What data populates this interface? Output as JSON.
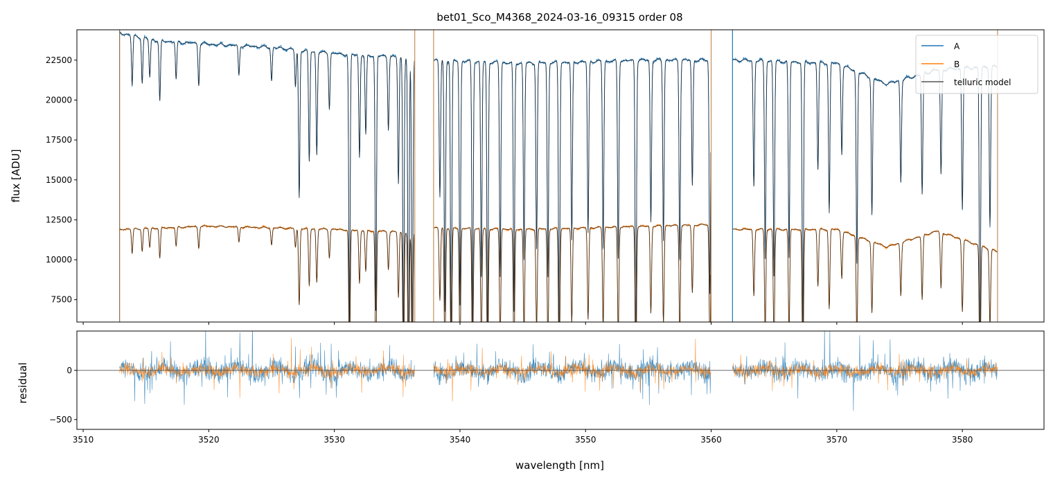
{
  "chart_data": [
    {
      "type": "line",
      "panel": "main",
      "title": "bet01_Sco_M4368_2024-03-16_09315  order 08",
      "xlabel": "",
      "ylabel": "flux [ADU]",
      "xlim": [
        3509.5,
        3586.5
      ],
      "ylim": [
        6100,
        24400
      ],
      "x_ticks": [
        3510,
        3520,
        3530,
        3540,
        3550,
        3560,
        3570,
        3580
      ],
      "y_ticks": [
        7500,
        10000,
        12500,
        15000,
        17500,
        20000,
        22500
      ],
      "y_tick_labels": [
        "7500",
        "10000",
        "12500",
        "15000",
        "17500",
        "20000",
        "22500"
      ],
      "legend": {
        "position": "top-right",
        "entries": [
          {
            "label": "A",
            "color": "#1f77b4"
          },
          {
            "label": "B",
            "color": "#ff7f0e"
          },
          {
            "label": "telluric model",
            "color": "#555555"
          }
        ]
      },
      "segments": [
        [
          3512.9,
          3536.4
        ],
        [
          3537.9,
          3560.0
        ],
        [
          3561.7,
          3582.8
        ]
      ],
      "series": [
        {
          "name": "A",
          "color": "#1f77b4",
          "continuum": [
            [
              3512.9,
              24200
            ],
            [
              3516,
              23700
            ],
            [
              3520,
              23500
            ],
            [
              3525,
              23300
            ],
            [
              3530,
              22900
            ],
            [
              3535,
              22700
            ],
            [
              3538,
              22500
            ],
            [
              3545,
              22300
            ],
            [
              3550,
              22400
            ],
            [
              3555,
              22500
            ],
            [
              3560,
              22500
            ],
            [
              3562,
              22500
            ],
            [
              3566,
              22400
            ],
            [
              3570,
              22300
            ],
            [
              3574,
              21000
            ],
            [
              3578,
              21900
            ],
            [
              3582.8,
              22100
            ]
          ]
        },
        {
          "name": "B",
          "color": "#ff7f0e",
          "continuum": [
            [
              3512.9,
              11900
            ],
            [
              3520,
              12100
            ],
            [
              3530,
              11900
            ],
            [
              3536.4,
              11700
            ],
            [
              3537.9,
              12000
            ],
            [
              3545,
              11900
            ],
            [
              3550,
              12000
            ],
            [
              3555,
              12100
            ],
            [
              3560,
              12200
            ],
            [
              3561.7,
              11900
            ],
            [
              3566,
              11900
            ],
            [
              3570,
              11900
            ],
            [
              3574,
              10800
            ],
            [
              3578,
              11800
            ],
            [
              3582.8,
              10500
            ]
          ]
        }
      ],
      "absorption_lines": [
        {
          "x": 3513.9,
          "depth": 0.13
        },
        {
          "x": 3514.7,
          "depth": 0.12
        },
        {
          "x": 3515.3,
          "depth": 0.1
        },
        {
          "x": 3516.1,
          "depth": 0.16
        },
        {
          "x": 3517.4,
          "depth": 0.1
        },
        {
          "x": 3519.2,
          "depth": 0.11
        },
        {
          "x": 3522.4,
          "depth": 0.08
        },
        {
          "x": 3525.0,
          "depth": 0.09
        },
        {
          "x": 3526.9,
          "depth": 0.1
        },
        {
          "x": 3527.2,
          "depth": 0.4
        },
        {
          "x": 3528.0,
          "depth": 0.3
        },
        {
          "x": 3528.6,
          "depth": 0.28
        },
        {
          "x": 3529.6,
          "depth": 0.15
        },
        {
          "x": 3531.2,
          "depth": 0.75
        },
        {
          "x": 3532.0,
          "depth": 0.28
        },
        {
          "x": 3532.5,
          "depth": 0.22
        },
        {
          "x": 3533.3,
          "depth": 0.7
        },
        {
          "x": 3534.3,
          "depth": 0.2
        },
        {
          "x": 3535.1,
          "depth": 0.35
        },
        {
          "x": 3535.5,
          "depth": 0.8
        },
        {
          "x": 3535.9,
          "depth": 0.9
        },
        {
          "x": 3536.2,
          "depth": 0.85
        },
        {
          "x": 3538.4,
          "depth": 0.38
        },
        {
          "x": 3538.8,
          "depth": 0.7
        },
        {
          "x": 3539.3,
          "depth": 0.8
        },
        {
          "x": 3540.0,
          "depth": 0.68
        },
        {
          "x": 3541.0,
          "depth": 0.75
        },
        {
          "x": 3541.7,
          "depth": 0.6
        },
        {
          "x": 3542.2,
          "depth": 0.78
        },
        {
          "x": 3543.2,
          "depth": 0.6
        },
        {
          "x": 3544.3,
          "depth": 0.7
        },
        {
          "x": 3545.1,
          "depth": 0.55
        },
        {
          "x": 3546.1,
          "depth": 0.52
        },
        {
          "x": 3547.0,
          "depth": 0.6
        },
        {
          "x": 3547.9,
          "depth": 0.82
        },
        {
          "x": 3548.9,
          "depth": 0.5
        },
        {
          "x": 3550.2,
          "depth": 0.48
        },
        {
          "x": 3551.4,
          "depth": 0.52
        },
        {
          "x": 3552.6,
          "depth": 0.55
        },
        {
          "x": 3554.0,
          "depth": 0.82
        },
        {
          "x": 3555.2,
          "depth": 0.45
        },
        {
          "x": 3556.2,
          "depth": 0.5
        },
        {
          "x": 3557.5,
          "depth": 0.55
        },
        {
          "x": 3558.5,
          "depth": 0.35
        },
        {
          "x": 3559.9,
          "depth": 0.65
        },
        {
          "x": 3563.4,
          "depth": 0.35
        },
        {
          "x": 3564.3,
          "depth": 0.55
        },
        {
          "x": 3565.0,
          "depth": 0.6
        },
        {
          "x": 3566.2,
          "depth": 0.55
        },
        {
          "x": 3567.3,
          "depth": 0.78
        },
        {
          "x": 3568.5,
          "depth": 0.3
        },
        {
          "x": 3569.4,
          "depth": 0.42
        },
        {
          "x": 3570.4,
          "depth": 0.25
        },
        {
          "x": 3571.6,
          "depth": 0.55
        },
        {
          "x": 3572.8,
          "depth": 0.4
        },
        {
          "x": 3575.1,
          "depth": 0.3
        },
        {
          "x": 3576.8,
          "depth": 0.35
        },
        {
          "x": 3578.3,
          "depth": 0.3
        },
        {
          "x": 3580.0,
          "depth": 0.4
        },
        {
          "x": 3581.4,
          "depth": 0.85
        },
        {
          "x": 3582.2,
          "depth": 0.45
        }
      ],
      "vertical_lines": [
        {
          "x": 3512.9,
          "color": "#8c6d46"
        },
        {
          "x": 3536.4,
          "color": "#c38f5a"
        },
        {
          "x": 3537.9,
          "color": "#c38f5a"
        },
        {
          "x": 3560.0,
          "color": "#c38f5a"
        },
        {
          "x": 3561.7,
          "color": "#1f77b4"
        },
        {
          "x": 3582.8,
          "color": "#c38f5a"
        }
      ]
    },
    {
      "type": "line",
      "panel": "residual",
      "xlabel": "wavelength [nm]",
      "ylabel": "residual",
      "xlim": [
        3509.5,
        3586.5
      ],
      "ylim": [
        -600,
        400
      ],
      "x_ticks": [
        3510,
        3520,
        3530,
        3540,
        3550,
        3560,
        3570,
        3580
      ],
      "x_tick_labels": [
        "3510",
        "3520",
        "3530",
        "3540",
        "3550",
        "3560",
        "3570",
        "3580"
      ],
      "y_ticks": [
        -500,
        0
      ],
      "y_tick_labels": [
        "−500",
        "0"
      ],
      "zero_line": 0,
      "series": [
        {
          "name": "A",
          "color": "#1f77b4",
          "noise_amplitude": 140
        },
        {
          "name": "B",
          "color": "#ff7f0e",
          "noise_amplitude": 90
        }
      ]
    }
  ]
}
